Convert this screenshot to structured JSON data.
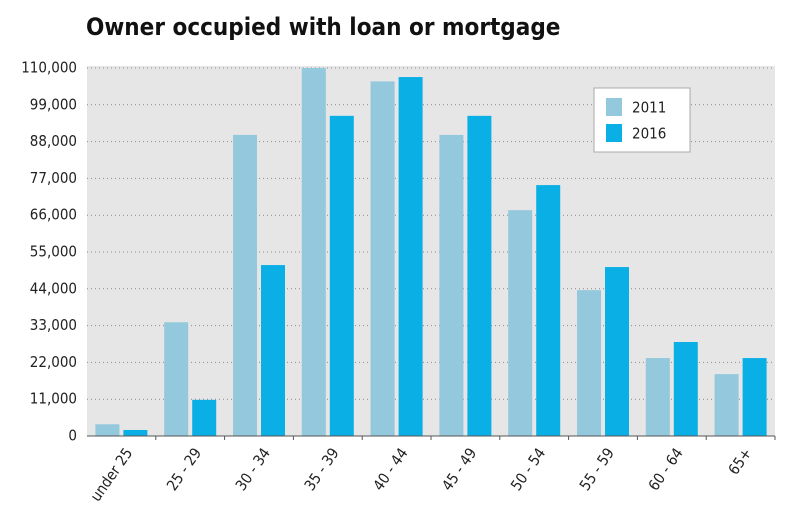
{
  "chart_data": {
    "type": "bar",
    "title": "Owner occupied with loan or mortgage",
    "categories": [
      "under 25",
      "25 - 29",
      "30 - 34",
      "35 - 39",
      "40 - 44",
      "45 - 49",
      "50 - 54",
      "55 - 59",
      "60 - 64",
      "65+"
    ],
    "series": [
      {
        "name": "2011",
        "color": "#93c8dd",
        "values": [
          3500,
          34000,
          90000,
          110000,
          106000,
          90000,
          67500,
          43600,
          23300,
          18500
        ]
      },
      {
        "name": "2016",
        "color": "#0aafe6",
        "values": [
          1800,
          10800,
          51100,
          95700,
          107300,
          95700,
          75000,
          50500,
          28100,
          23300
        ]
      }
    ],
    "ylim": [
      0,
      110000
    ],
    "yticks": [
      0,
      {
        "value": 11000,
        "label": "11,000"
      },
      {
        "value": 22000,
        "label": "22,000"
      },
      {
        "value": 33000,
        "label": "33,000"
      },
      {
        "value": 44000,
        "label": "44,000"
      },
      {
        "value": 55000,
        "label": "55,000"
      },
      {
        "value": 66000,
        "label": "66,000"
      },
      {
        "value": 77000,
        "label": "77,000"
      },
      {
        "value": 88000,
        "label": "88,000"
      },
      {
        "value": 99000,
        "label": "99,000"
      },
      {
        "value": 110000,
        "label": "110,000"
      }
    ],
    "grid": true,
    "legend": "top-right"
  }
}
